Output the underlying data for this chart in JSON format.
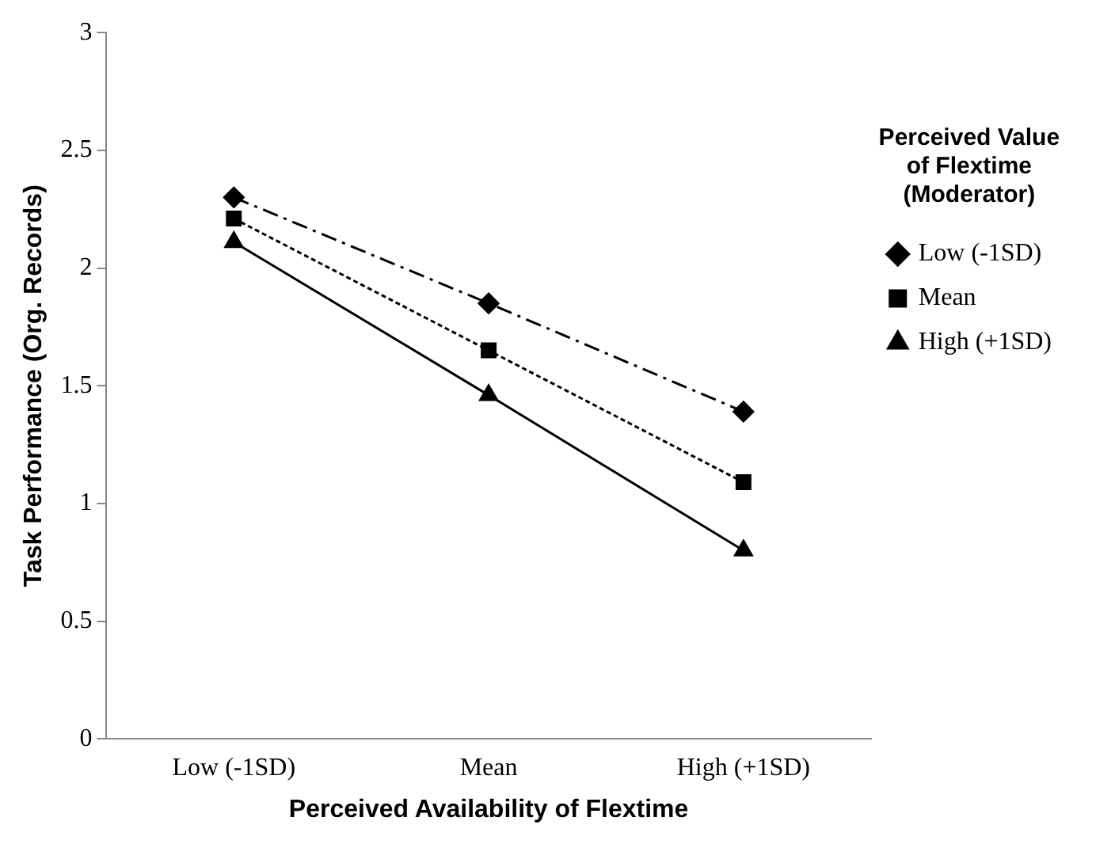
{
  "chart_data": {
    "type": "line",
    "xlabel": "Perceived Availability of Flextime",
    "ylabel": "Task Performance (Org. Records)",
    "legend_title": "Perceived Value of Flextime (Moderator)",
    "categories": [
      "Low (-1SD)",
      "Mean",
      "High (+1SD)"
    ],
    "series": [
      {
        "name": "Low (-1SD)",
        "color": "#000000",
        "values": [
          2.3,
          1.85,
          1.39
        ],
        "marker": "diamond",
        "line_style": "dashed"
      },
      {
        "name": "Mean",
        "color": "#000000",
        "values": [
          2.21,
          1.65,
          1.09
        ],
        "marker": "square",
        "line_style": "dotted"
      },
      {
        "name": "High (+1SD)",
        "color": "#000000",
        "values": [
          2.11,
          1.46,
          0.8
        ],
        "marker": "triangle",
        "line_style": "solid"
      }
    ],
    "ylim": [
      0,
      3
    ],
    "yticks": [
      0,
      0.5,
      1,
      1.5,
      2,
      2.5,
      3
    ],
    "grid": false,
    "legend": "right"
  }
}
